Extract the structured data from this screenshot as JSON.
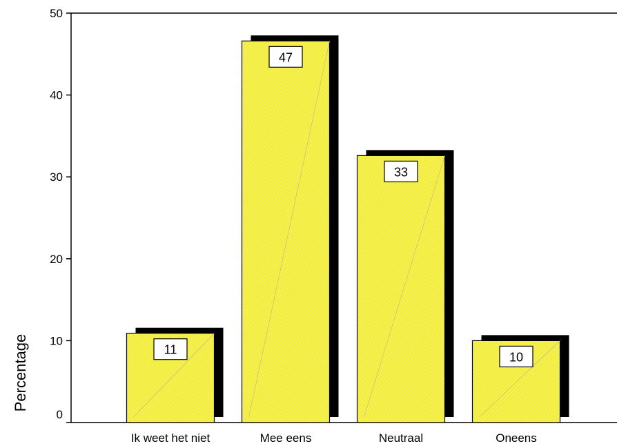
{
  "chart_data": {
    "type": "bar",
    "ylabel": "Percentage",
    "xlabel": "",
    "ylim": [
      0,
      50
    ],
    "yticks": [
      0,
      10,
      20,
      30,
      40,
      50
    ],
    "grid": false,
    "style": "3d-shadow",
    "categories": [
      "Ik weet het niet",
      "Mee eens",
      "Neutraal",
      "Oneens"
    ],
    "values": [
      10.9,
      46.6,
      32.6,
      10.0
    ],
    "data_labels": [
      "11",
      "47",
      "33",
      "10"
    ],
    "colors": {
      "bar": "#f7f23c",
      "shadow": "#000000",
      "outline": "#000000",
      "background": "#ffffff"
    }
  }
}
